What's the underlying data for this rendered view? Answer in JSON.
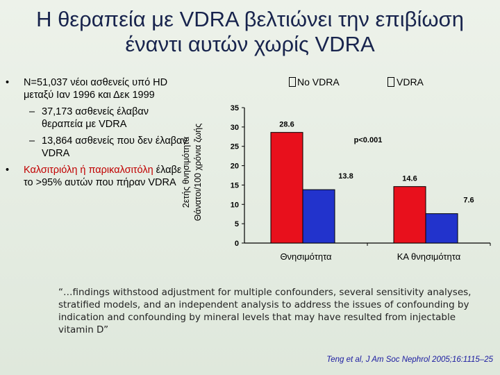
{
  "slide": {
    "title_line1": "Η θεραπεία με VDRA βελτιώνει την επιβίωση",
    "title_line2": "έναντι αυτών χωρίς VDRA",
    "bullet_symbol": "•",
    "dash_symbol": "–",
    "bullets": [
      {
        "text": "N=51,037 νέοι ασθενείς υπό HD μεταξύ Ιαν 1996 και Δεκ 1999",
        "subs": [
          "37,173 ασθενείς έλαβαν θεραπεία με VDRA",
          "13,864 ασθενείς που δεν έλαβαν VDRA"
        ]
      },
      {
        "text_red_1": "Καλσιτριόλη ή παρικαλσιτόλη",
        "text_rest": " έλαβε το >95% αυτών που πήραν VDRA"
      }
    ],
    "quote": "“…findings withstood adjustment for multiple confounders, several sensitivity analyses, stratified models, and an independent analysis to address the issues of confounding by indication and confounding by mineral levels that may have resulted from injectable vitamin D”",
    "citation": "Teng et al, J Am Soc Nephrol 2005;16:1115–25"
  },
  "colors": {
    "title": "#18244d",
    "no_vdra": "#e8101c",
    "vdra": "#2233cc",
    "accent_red": "#c00000",
    "citation": "#1a1aa0"
  },
  "chart_data": {
    "type": "bar",
    "ylabel_line1": "2ετής θνησιμότητα",
    "ylabel_line2": "Θάνατοι/100 χρόνια ζωής",
    "categories": [
      "Θνησιμότητα",
      "ΚΑ θνησιμότητα"
    ],
    "series": [
      {
        "name": "No VDRA",
        "values": [
          28.6,
          14.6
        ],
        "color": "#e8101c"
      },
      {
        "name": "VDRA",
        "values": [
          13.8,
          7.6
        ],
        "color": "#2233cc"
      }
    ],
    "value_labels": [
      [
        "28.6",
        "14.6"
      ],
      [
        "13.8",
        "7.6"
      ]
    ],
    "yticks": [
      "0",
      "5",
      "10",
      "15",
      "20",
      "25",
      "30",
      "35"
    ],
    "ylim": [
      0,
      35
    ],
    "annotation": "p<0.001",
    "grid": false,
    "legend": "top"
  }
}
